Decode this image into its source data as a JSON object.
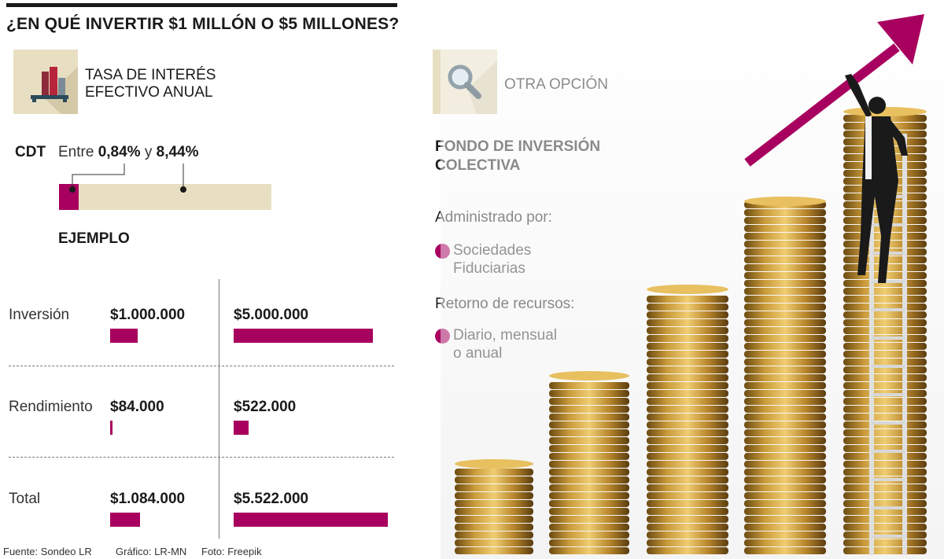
{
  "title": "¿EN QUÉ INVERTIR $1 MILLÓN O $5 MILLONES?",
  "rate_section": {
    "label_line1": "TASA DE INTERÉS",
    "label_line2": "EFECTIVO ANUAL",
    "icon": "bar-chart-icon"
  },
  "cdt": {
    "label": "CDT",
    "prefix": "Entre",
    "low": "0,84%",
    "connector": "y",
    "high": "8,44%",
    "range_pct": [
      0.84,
      8.44
    ]
  },
  "example_label": "EJEMPLO",
  "other_section": {
    "label": "OTRA OPCIÓN",
    "icon": "magnifier-icon",
    "fund_line1": "FONDO DE INVERSIÓN",
    "fund_line2": "COLECTIVA",
    "managed_by_label": "Administrado por:",
    "managed_by_line1": "Sociedades",
    "managed_by_line2": "Fiduciarias",
    "return_label": "Retorno de recursos:",
    "return_line1": "Diario, mensual",
    "return_line2": "o anual"
  },
  "footer": {
    "source": "Fuente: Sondeo LR",
    "graphic": "Gráfico: LR-MN",
    "photo": "Foto: Freepik"
  },
  "colors": {
    "accent": "#a8005f",
    "beige": "#e8dfc3",
    "text": "#1a1a1a"
  },
  "chart_data": {
    "type": "bar",
    "categories": [
      "Inversión",
      "Rendimiento",
      "Total"
    ],
    "series": [
      {
        "values": [
          1000000,
          84000,
          1084000
        ],
        "labels": [
          "$1.000.000",
          "$84.000",
          "$1.084.000"
        ]
      },
      {
        "values": [
          5000000,
          522000,
          5522000
        ],
        "labels": [
          "$5.000.000",
          "$522.000",
          "$5.522.000"
        ]
      }
    ]
  }
}
